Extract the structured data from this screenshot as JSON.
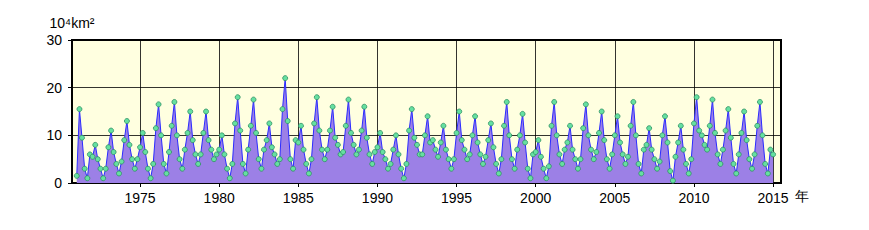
{
  "chart_data": {
    "type": "area",
    "ylabel": "10⁴km²",
    "xlabel": "年",
    "xlim": [
      1970.7,
      2015.5
    ],
    "xticks": [
      1975,
      1980,
      1985,
      1990,
      1995,
      2000,
      2005,
      2010,
      2015
    ],
    "ylim": [
      0,
      30
    ],
    "yticks": [
      0,
      10,
      20,
      30
    ],
    "grid": true,
    "color": "#2b2bff",
    "marker": "circle",
    "x": [
      1971,
      1971.17,
      1971.33,
      1971.5,
      1971.67,
      1971.83,
      1972,
      1972.17,
      1972.33,
      1972.5,
      1972.67,
      1972.83,
      1973,
      1973.17,
      1973.33,
      1973.5,
      1973.67,
      1973.83,
      1974,
      1974.17,
      1974.33,
      1974.5,
      1974.67,
      1974.83,
      1975,
      1975.17,
      1975.33,
      1975.5,
      1975.67,
      1975.83,
      1976,
      1976.17,
      1976.33,
      1976.5,
      1976.67,
      1976.83,
      1977,
      1977.17,
      1977.33,
      1977.5,
      1977.67,
      1977.83,
      1978,
      1978.17,
      1978.33,
      1978.5,
      1978.67,
      1978.83,
      1979,
      1979.17,
      1979.33,
      1979.5,
      1979.67,
      1979.83,
      1980,
      1980.17,
      1980.33,
      1980.5,
      1980.67,
      1980.83,
      1981,
      1981.17,
      1981.33,
      1981.5,
      1981.67,
      1981.83,
      1982,
      1982.17,
      1982.33,
      1982.5,
      1982.67,
      1982.83,
      1983,
      1983.17,
      1983.33,
      1983.5,
      1983.67,
      1983.83,
      1984,
      1984.17,
      1984.33,
      1984.5,
      1984.67,
      1984.83,
      1985,
      1985.17,
      1985.33,
      1985.5,
      1985.67,
      1985.83,
      1986,
      1986.17,
      1986.33,
      1986.5,
      1986.67,
      1986.83,
      1987,
      1987.17,
      1987.33,
      1987.5,
      1987.67,
      1987.83,
      1988,
      1988.17,
      1988.33,
      1988.5,
      1988.67,
      1988.83,
      1989,
      1989.17,
      1989.33,
      1989.5,
      1989.67,
      1989.83,
      1990,
      1990.17,
      1990.33,
      1990.5,
      1990.67,
      1990.83,
      1991,
      1991.17,
      1991.33,
      1991.5,
      1991.67,
      1991.83,
      1992,
      1992.17,
      1992.33,
      1992.5,
      1992.67,
      1992.83,
      1993,
      1993.17,
      1993.33,
      1993.5,
      1993.67,
      1993.83,
      1994,
      1994.17,
      1994.33,
      1994.5,
      1994.67,
      1994.83,
      1995,
      1995.17,
      1995.33,
      1995.5,
      1995.67,
      1995.83,
      1996,
      1996.17,
      1996.33,
      1996.5,
      1996.67,
      1996.83,
      1997,
      1997.17,
      1997.33,
      1997.5,
      1997.67,
      1997.83,
      1998,
      1998.17,
      1998.33,
      1998.5,
      1998.67,
      1998.83,
      1999,
      1999.17,
      1999.33,
      1999.5,
      1999.67,
      1999.83,
      2000,
      2000.17,
      2000.33,
      2000.5,
      2000.67,
      2000.83,
      2001,
      2001.17,
      2001.33,
      2001.5,
      2001.67,
      2001.83,
      2002,
      2002.17,
      2002.33,
      2002.5,
      2002.67,
      2002.83,
      2003,
      2003.17,
      2003.33,
      2003.5,
      2003.67,
      2003.83,
      2004,
      2004.17,
      2004.33,
      2004.5,
      2004.67,
      2004.83,
      2005,
      2005.17,
      2005.33,
      2005.5,
      2005.67,
      2005.83,
      2006,
      2006.17,
      2006.33,
      2006.5,
      2006.67,
      2006.83,
      2007,
      2007.17,
      2007.33,
      2007.5,
      2007.67,
      2007.83,
      2008,
      2008.17,
      2008.33,
      2008.5,
      2008.67,
      2008.83,
      2009,
      2009.17,
      2009.33,
      2009.5,
      2009.67,
      2009.83,
      2010,
      2010.17,
      2010.33,
      2010.5,
      2010.67,
      2010.83,
      2011,
      2011.17,
      2011.33,
      2011.5,
      2011.67,
      2011.83,
      2012,
      2012.17,
      2012.33,
      2012.5,
      2012.67,
      2012.83,
      2013,
      2013.17,
      2013.33,
      2013.5,
      2013.67,
      2013.83,
      2014,
      2014.17,
      2014.33,
      2014.5,
      2014.67,
      2014.83,
      2015
    ],
    "values": [
      1.5,
      15.5,
      9.5,
      3,
      1,
      6,
      5.5,
      8,
      5,
      3,
      1,
      3,
      7.5,
      11,
      6.5,
      4,
      2,
      4.5,
      9,
      13,
      8,
      5,
      3,
      5,
      7.5,
      10.5,
      6.5,
      3,
      1,
      4,
      11.5,
      16.5,
      10,
      4,
      2,
      6.5,
      12,
      17,
      10,
      5,
      3,
      7,
      10.5,
      15,
      9,
      6,
      4,
      6,
      10.5,
      15,
      9,
      7,
      5,
      6,
      7,
      10,
      6,
      3,
      1,
      4,
      12.5,
      18,
      11,
      4,
      2,
      7,
      12,
      17.5,
      10.5,
      5,
      3,
      7,
      9,
      12.5,
      7.5,
      6,
      4,
      5,
      15.5,
      22,
      13,
      5,
      3,
      9,
      8.5,
      12,
      7,
      4,
      2,
      5,
      12.5,
      18,
      11,
      7,
      5,
      7,
      11,
      16,
      9.5,
      8,
      6,
      6.5,
      12,
      17.5,
      10.5,
      8,
      6,
      7,
      11,
      16,
      9.5,
      6,
      4,
      6.5,
      7.5,
      10.5,
      6.5,
      5,
      3,
      4,
      7,
      10,
      6,
      3,
      1,
      4,
      11,
      15.5,
      9.5,
      8,
      6,
      6,
      10,
      14,
      8.5,
      9,
      7,
      5.5,
      8.5,
      12,
      7,
      5,
      3,
      5,
      10.5,
      15,
      9,
      7,
      5,
      6,
      10,
      14,
      8.5,
      6,
      4,
      5.5,
      9,
      12.5,
      7.5,
      4,
      2,
      5,
      12,
      17,
      10,
      5,
      3,
      7,
      10,
      14.5,
      8.5,
      3,
      1,
      6,
      6.5,
      9,
      5.5,
      3,
      1,
      3.5,
      12,
      17,
      10,
      6,
      4,
      7,
      8.5,
      12,
      7,
      5,
      3,
      5,
      11.5,
      16.5,
      10,
      7,
      5,
      6.5,
      10.5,
      15,
      9,
      5,
      3,
      6,
      10,
      14,
      8.5,
      6,
      4,
      5.5,
      12,
      17,
      10,
      4,
      2,
      7,
      8,
      11.5,
      7,
      5,
      3,
      4.5,
      10,
      14,
      8.5,
      2.5,
      0.5,
      5.5,
      8.5,
      12,
      7,
      4,
      2,
      5,
      12.5,
      18,
      11,
      10,
      8,
      7,
      12,
      17.5,
      10.5,
      6,
      4,
      7,
      11,
      15.5,
      9.5,
      4,
      2,
      6,
      10.5,
      15,
      9,
      5,
      3,
      6,
      12,
      17,
      10,
      4,
      2,
      7,
      6
    ]
  }
}
